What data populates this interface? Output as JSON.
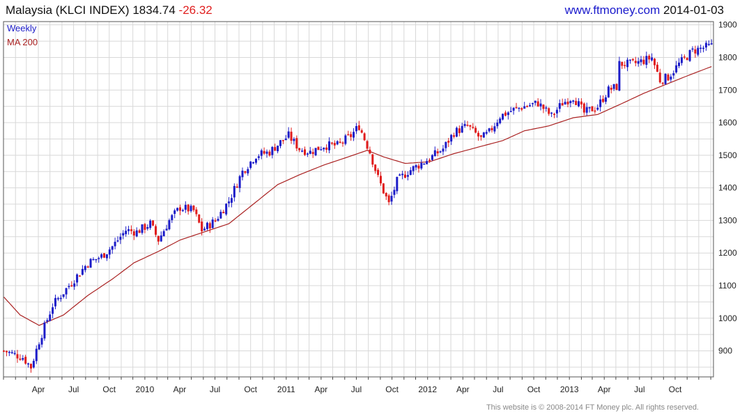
{
  "header": {
    "name": "Malaysia (KLCI INDEX)",
    "last": "1834.74",
    "change": "-26.32",
    "site": "www.ftmoney.com",
    "date": "2014-01-03"
  },
  "footer": {
    "copyright": "This website is © 2008-2014 FT Money plc. All rights reserved."
  },
  "colors": {
    "up": "#1c1cc8",
    "down": "#e01c1c",
    "ma": "#aa2222",
    "grid": "#d8d8d8"
  },
  "chart_data": {
    "type": "candlestick",
    "interval": "Weekly",
    "ylim": [
      820,
      1910
    ],
    "grid": true,
    "legend_placement": "top-left",
    "y_ticks": [
      900,
      1000,
      1100,
      1200,
      1300,
      1400,
      1500,
      1600,
      1700,
      1800,
      1900
    ],
    "x_ticks": [
      "Apr",
      "Jul",
      "Oct",
      "2010",
      "Apr",
      "Jul",
      "Oct",
      "2011",
      "Apr",
      "Jul",
      "Oct",
      "2012",
      "Apr",
      "Jul",
      "Oct",
      "2013",
      "Apr",
      "Jul",
      "Oct"
    ],
    "x_range": [
      "2009-01",
      "2014-01"
    ],
    "legend": [
      "Weekly",
      "MA 200"
    ],
    "price_anchors": [
      [
        "2009-01-02",
        900
      ],
      [
        "2009-02-20",
        880
      ],
      [
        "2009-03-13",
        850
      ],
      [
        "2009-04-03",
        930
      ],
      [
        "2009-05-08",
        1040
      ],
      [
        "2009-06-05",
        1080
      ],
      [
        "2009-07-10",
        1130
      ],
      [
        "2009-08-07",
        1170
      ],
      [
        "2009-09-11",
        1190
      ],
      [
        "2009-10-09",
        1220
      ],
      [
        "2009-11-13",
        1270
      ],
      [
        "2009-12-11",
        1265
      ],
      [
        "2010-01-15",
        1290
      ],
      [
        "2010-02-05",
        1240
      ],
      [
        "2010-03-05",
        1300
      ],
      [
        "2010-04-02",
        1340
      ],
      [
        "2010-05-07",
        1330
      ],
      [
        "2010-05-28",
        1270
      ],
      [
        "2010-07-02",
        1300
      ],
      [
        "2010-08-06",
        1360
      ],
      [
        "2010-09-10",
        1450
      ],
      [
        "2010-10-15",
        1500
      ],
      [
        "2010-11-19",
        1510
      ],
      [
        "2010-12-17",
        1540
      ],
      [
        "2011-01-07",
        1560
      ],
      [
        "2011-02-04",
        1520
      ],
      [
        "2011-03-04",
        1510
      ],
      [
        "2011-04-08",
        1530
      ],
      [
        "2011-05-13",
        1530
      ],
      [
        "2011-06-17",
        1560
      ],
      [
        "2011-07-08",
        1590
      ],
      [
        "2011-08-05",
        1510
      ],
      [
        "2011-08-26",
        1430
      ],
      [
        "2011-09-23",
        1350
      ],
      [
        "2011-10-14",
        1420
      ],
      [
        "2011-11-11",
        1450
      ],
      [
        "2011-12-09",
        1470
      ],
      [
        "2012-01-06",
        1490
      ],
      [
        "2012-02-10",
        1520
      ],
      [
        "2012-03-09",
        1570
      ],
      [
        "2012-04-13",
        1590
      ],
      [
        "2012-05-18",
        1550
      ],
      [
        "2012-06-08",
        1570
      ],
      [
        "2012-07-06",
        1620
      ],
      [
        "2012-08-10",
        1640
      ],
      [
        "2012-09-07",
        1650
      ],
      [
        "2012-10-12",
        1660
      ],
      [
        "2012-11-16",
        1620
      ],
      [
        "2012-12-14",
        1660
      ],
      [
        "2013-01-11",
        1680
      ],
      [
        "2013-02-08",
        1630
      ],
      [
        "2013-03-15",
        1650
      ],
      [
        "2013-04-12",
        1700
      ],
      [
        "2013-05-03",
        1710
      ],
      [
        "2013-05-10",
        1780
      ],
      [
        "2013-06-14",
        1780
      ],
      [
        "2013-07-12",
        1790
      ],
      [
        "2013-08-02",
        1800
      ],
      [
        "2013-08-23",
        1730
      ],
      [
        "2013-09-13",
        1740
      ],
      [
        "2013-10-11",
        1780
      ],
      [
        "2013-11-15",
        1820
      ],
      [
        "2013-12-13",
        1830
      ],
      [
        "2014-01-03",
        1835
      ]
    ],
    "ma200_anchors": [
      [
        "2009-01-02",
        1065
      ],
      [
        "2009-02-13",
        1010
      ],
      [
        "2009-04-03",
        978
      ],
      [
        "2009-06-05",
        1010
      ],
      [
        "2009-08-07",
        1070
      ],
      [
        "2009-10-09",
        1120
      ],
      [
        "2009-12-04",
        1170
      ],
      [
        "2010-02-05",
        1205
      ],
      [
        "2010-04-02",
        1240
      ],
      [
        "2010-06-04",
        1265
      ],
      [
        "2010-08-06",
        1290
      ],
      [
        "2010-10-08",
        1350
      ],
      [
        "2010-12-10",
        1410
      ],
      [
        "2011-02-04",
        1440
      ],
      [
        "2011-04-08",
        1470
      ],
      [
        "2011-06-10",
        1495
      ],
      [
        "2011-07-29",
        1515
      ],
      [
        "2011-09-09",
        1495
      ],
      [
        "2011-11-04",
        1475
      ],
      [
        "2012-01-06",
        1480
      ],
      [
        "2012-03-09",
        1505
      ],
      [
        "2012-05-11",
        1525
      ],
      [
        "2012-07-13",
        1545
      ],
      [
        "2012-09-07",
        1575
      ],
      [
        "2012-11-09",
        1590
      ],
      [
        "2013-01-11",
        1615
      ],
      [
        "2013-03-15",
        1625
      ],
      [
        "2013-05-10",
        1655
      ],
      [
        "2013-07-12",
        1690
      ],
      [
        "2013-09-13",
        1720
      ],
      [
        "2013-11-15",
        1750
      ],
      [
        "2014-01-03",
        1772
      ]
    ]
  }
}
